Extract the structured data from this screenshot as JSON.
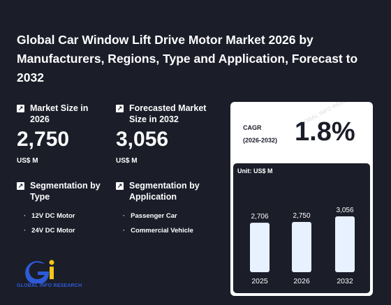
{
  "title": "Global Car Window Lift Drive Motor Market 2026 by Manufacturers, Regions, Type and Application, Forecast to 2032",
  "market_size": {
    "label": "Market Size in 2026",
    "value": "2,750",
    "unit": "US$ M"
  },
  "forecast": {
    "label": "Forecasted Market Size in 2032",
    "value": "3,056",
    "unit": "US$ M"
  },
  "segmentation_type": {
    "label": "Segmentation by Type",
    "items": [
      "12V DC Motor",
      "24V DC Motor"
    ]
  },
  "segmentation_application": {
    "label": "Segmentation by Application",
    "items": [
      "Passenger Car",
      "Commercial Vehicle"
    ]
  },
  "cagr": {
    "label_line1": "CAGR",
    "label_line2": "(2026-2032)",
    "value": "1.8%"
  },
  "logo": {
    "text": "GLOBAL INFO RESEARCH",
    "watermark": "GLOBAL INFO RESEARCH"
  },
  "chart_data": {
    "type": "bar",
    "unit_label": "Unit: US$ M",
    "categories": [
      "2025",
      "2026",
      "2032"
    ],
    "values": [
      2706,
      2750,
      3056
    ],
    "value_labels": [
      "2,706",
      "2,750",
      "3,056"
    ],
    "ylim": [
      0,
      3056
    ],
    "grid": false
  },
  "colors": {
    "background": "#1b1d29",
    "bar": "#e8f1ff",
    "logo_blue": "#2d5bd7",
    "logo_yellow": "#f5c518"
  }
}
